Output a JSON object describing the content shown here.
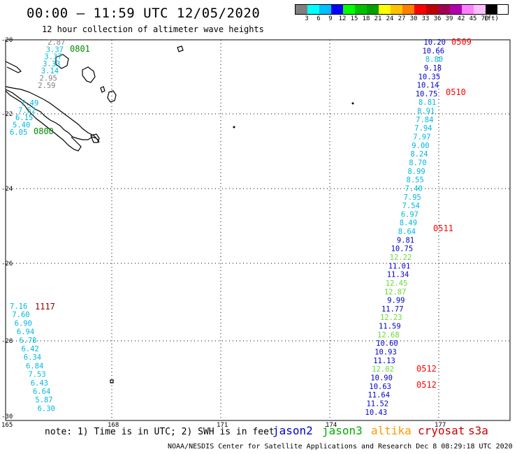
{
  "title": "00:00 – 11:59 UTC 12/05/2020",
  "subtitle": "12 hour collection of altimeter wave heights",
  "scale": {
    "colors": [
      "#808080",
      "#00ffff",
      "#00c0ff",
      "#0000ff",
      "#00ff00",
      "#00c000",
      "#00a000",
      "#ffff00",
      "#ffc000",
      "#ff8000",
      "#ff0000",
      "#c00000",
      "#a00050",
      "#b000b0",
      "#ff80ff",
      "#ffc0ff",
      "#000000"
    ],
    "labels": [
      "3",
      "6",
      "9",
      "12",
      "15",
      "18",
      "21",
      "24",
      "27",
      "30",
      "33",
      "36",
      "39",
      "42",
      "45",
      "70",
      "(ft)"
    ]
  },
  "lat_labels": [
    "-20",
    "-22",
    "-24",
    "-26",
    "-28",
    "-30"
  ],
  "lon_labels": [
    "165",
    "168",
    "171",
    "174",
    "177"
  ],
  "colors": {
    "jason2": "#0000cc",
    "jason3": "#00aa00",
    "altika": "#ff9900",
    "cryosat": "#cc0000",
    "s3a": "#cc0000",
    "cyan": "#00b8e0",
    "gray": "#808080",
    "green_time": "#008800",
    "lightgreen": "#66dd33",
    "red_time": "#ff0000",
    "darkred_time": "#8b0000"
  },
  "tracks": [
    {
      "name": "track-0801",
      "time_label": "0801",
      "time_color": "#008800",
      "values": [
        {
          "v": "2.87",
          "c": "#808080"
        },
        {
          "v": "3.37",
          "c": "#00b8e0"
        },
        {
          "v": "3.37",
          "c": "#00b8e0"
        },
        {
          "v": "3.33",
          "c": "#00b8e0"
        },
        {
          "v": "3.14",
          "c": "#00b8e0"
        },
        {
          "v": "2.95",
          "c": "#808080"
        },
        {
          "v": "2.59",
          "c": "#808080"
        }
      ]
    },
    {
      "name": "track-0800",
      "time_label": "0800",
      "time_color": "#008800",
      "values": [
        {
          "v": "7.49",
          "c": "#00b8e0"
        },
        {
          "v": "7.52",
          "c": "#00b8e0"
        },
        {
          "v": "6.15",
          "c": "#00b8e0"
        },
        {
          "v": "5.40",
          "c": "#00b8e0"
        },
        {
          "v": "6.05",
          "c": "#00b8e0"
        }
      ]
    },
    {
      "name": "track-1117",
      "time_label": "1117",
      "time_color": "#8b0000",
      "values": [
        {
          "v": "7.16",
          "c": "#00b8e0"
        },
        {
          "v": "7.60",
          "c": "#00b8e0"
        },
        {
          "v": "6.90",
          "c": "#00b8e0"
        },
        {
          "v": "6.94",
          "c": "#00b8e0"
        },
        {
          "v": "6.78",
          "c": "#00b8e0"
        },
        {
          "v": "6.42",
          "c": "#00b8e0"
        },
        {
          "v": "6.34",
          "c": "#00b8e0"
        },
        {
          "v": "6.84",
          "c": "#00b8e0"
        },
        {
          "v": "7.53",
          "c": "#00b8e0"
        },
        {
          "v": "6.43",
          "c": "#00b8e0"
        },
        {
          "v": "6.64",
          "c": "#00b8e0"
        },
        {
          "v": "5.87",
          "c": "#00b8e0"
        },
        {
          "v": "6.30",
          "c": "#00b8e0"
        }
      ]
    },
    {
      "name": "track-east",
      "time_labels": [
        "0509",
        "0510",
        "0511",
        "0512",
        "0512"
      ],
      "time_color": "#ff0000",
      "values": [
        {
          "v": "10.20",
          "c": "#0000cc"
        },
        {
          "v": "10.66",
          "c": "#0000cc"
        },
        {
          "v": "8.80",
          "c": "#00b8e0"
        },
        {
          "v": "9.18",
          "c": "#0000cc"
        },
        {
          "v": "10.35",
          "c": "#0000cc"
        },
        {
          "v": "10.14",
          "c": "#0000cc"
        },
        {
          "v": "10.75",
          "c": "#0000cc"
        },
        {
          "v": "8.81",
          "c": "#00b8e0"
        },
        {
          "v": "8.91",
          "c": "#00b8e0"
        },
        {
          "v": "7.84",
          "c": "#00b8e0"
        },
        {
          "v": "7.94",
          "c": "#00b8e0"
        },
        {
          "v": "7.97",
          "c": "#00b8e0"
        },
        {
          "v": "9.00",
          "c": "#00b8e0"
        },
        {
          "v": "8.24",
          "c": "#00b8e0"
        },
        {
          "v": "8.70",
          "c": "#00b8e0"
        },
        {
          "v": "8.99",
          "c": "#00b8e0"
        },
        {
          "v": "8.55",
          "c": "#00b8e0"
        },
        {
          "v": "7.40",
          "c": "#00b8e0"
        },
        {
          "v": "7.95",
          "c": "#00b8e0"
        },
        {
          "v": "7.54",
          "c": "#00b8e0"
        },
        {
          "v": "6.97",
          "c": "#00b8e0"
        },
        {
          "v": "8.49",
          "c": "#00b8e0"
        },
        {
          "v": "8.64",
          "c": "#00b8e0"
        },
        {
          "v": "9.81",
          "c": "#0000cc"
        },
        {
          "v": "10.75",
          "c": "#0000cc"
        },
        {
          "v": "12.22",
          "c": "#66dd33"
        },
        {
          "v": "11.01",
          "c": "#0000cc"
        },
        {
          "v": "11.34",
          "c": "#0000cc"
        },
        {
          "v": "12.45",
          "c": "#66dd33"
        },
        {
          "v": "12.87",
          "c": "#66dd33"
        },
        {
          "v": "9.99",
          "c": "#0000cc"
        },
        {
          "v": "11.77",
          "c": "#0000cc"
        },
        {
          "v": "12.23",
          "c": "#66dd33"
        },
        {
          "v": "11.59",
          "c": "#0000cc"
        },
        {
          "v": "12.68",
          "c": "#66dd33"
        },
        {
          "v": "10.60",
          "c": "#0000cc"
        },
        {
          "v": "10.93",
          "c": "#0000cc"
        },
        {
          "v": "11.13",
          "c": "#0000cc"
        },
        {
          "v": "12.02",
          "c": "#66dd33"
        },
        {
          "v": "10.90",
          "c": "#0000cc"
        },
        {
          "v": "10.63",
          "c": "#0000cc"
        },
        {
          "v": "11.64",
          "c": "#0000cc"
        },
        {
          "v": "11.52",
          "c": "#0000cc"
        },
        {
          "v": "10.43",
          "c": "#0000cc"
        }
      ]
    }
  ],
  "note": "note: 1) Time is in UTC; 2) SWH is in feet",
  "legend": [
    {
      "label": "jason2",
      "color": "#0000cc"
    },
    {
      "label": "jason3",
      "color": "#00aa00"
    },
    {
      "label": "altika",
      "color": "#ff9900"
    },
    {
      "label": "cryosat",
      "color": "#cc0000"
    },
    {
      "label": "s3a",
      "color": "#cc0000"
    }
  ],
  "footer": "NOAA/NESDIS Center for Satellite Applications and Research   Dec  8 08:29:18 UTC 2020"
}
